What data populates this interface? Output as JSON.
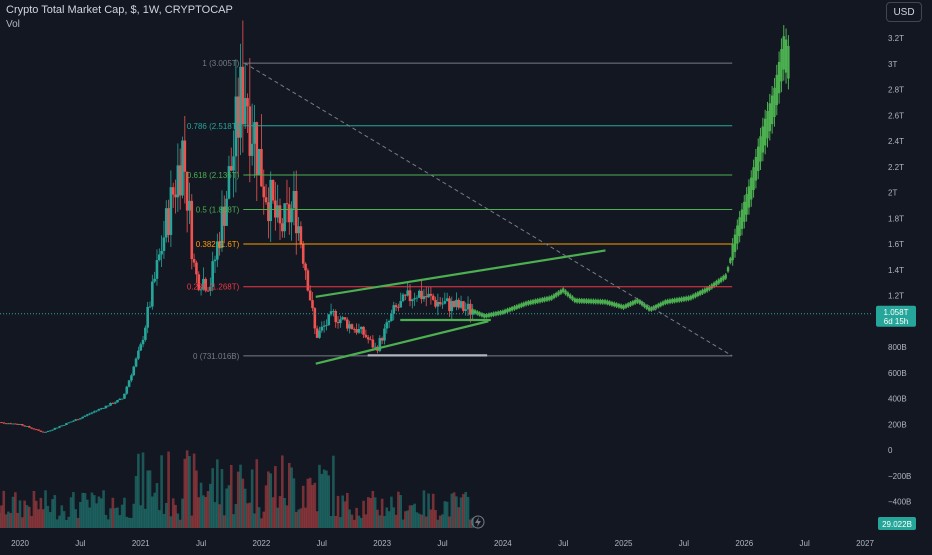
{
  "header": {
    "title": "Crypto Total Market Cap, $, 1W, CRYPTOCAP",
    "vol_label": "Vol"
  },
  "currency_button": "USD",
  "price_label": {
    "value": "1.058T",
    "countdown": "6d 15h"
  },
  "volume_label": "29.022B",
  "colors": {
    "background": "#131722",
    "up": "#26a69a",
    "down": "#ef5350",
    "projection": "#4caf50",
    "fib_levels": [
      "#787b86",
      "#26a69a",
      "#4caf50",
      "#4caf50",
      "#ff9800",
      "#f23645",
      "#787b86"
    ]
  },
  "chart_data": {
    "type": "candlestick",
    "symbol": "CRYPTOCAP:TOTAL",
    "interval": "1W",
    "price_axis_labels": [
      "3.2T",
      "3T",
      "2.8T",
      "2.6T",
      "2.4T",
      "2.2T",
      "2T",
      "1.8T",
      "1.6T",
      "1.4T",
      "1.2T",
      "1T",
      "800B",
      "600B",
      "400B",
      "200B",
      "0",
      "−200B",
      "−400B"
    ],
    "price_axis_values": [
      3200,
      3000,
      2800,
      2600,
      2400,
      2200,
      2000,
      1800,
      1600,
      1400,
      1200,
      1000,
      800,
      600,
      400,
      200,
      0,
      -200,
      -400
    ],
    "time_axis_labels": [
      "2020",
      "Jul",
      "2021",
      "Jul",
      "2022",
      "Jul",
      "2023",
      "Jul",
      "2024",
      "Jul",
      "2025",
      "Jul",
      "2026",
      "Jul",
      "2027"
    ],
    "time_axis_values": [
      2020.0,
      2020.5,
      2021.0,
      2021.5,
      2022.0,
      2022.5,
      2023.0,
      2023.5,
      2024.0,
      2024.5,
      2025.0,
      2025.5,
      2026.0,
      2026.5,
      2027.0
    ],
    "fib_retracement": [
      {
        "label": "1 (3.005T)",
        "value": 3005
      },
      {
        "label": "0.786 (2.518T)",
        "value": 2518
      },
      {
        "label": "0.618 (2.136T)",
        "value": 2136
      },
      {
        "label": "0.5 (1.868T)",
        "value": 1868
      },
      {
        "label": "0.382 (1.6T)",
        "value": 1600
      },
      {
        "label": "0.236 (1.268T)",
        "value": 1268
      },
      {
        "label": "0 (731.016B)",
        "value": 731
      }
    ],
    "fib_range": {
      "x_start": 2021.85,
      "x_end": 2025.9
    },
    "current_price": 1058,
    "historical_ohlc_anchors": [
      [
        2019.75,
        220
      ],
      [
        2020.0,
        200
      ],
      [
        2020.2,
        135
      ],
      [
        2020.5,
        250
      ],
      [
        2020.85,
        400
      ],
      [
        2021.0,
        800
      ],
      [
        2021.2,
        1700
      ],
      [
        2021.35,
        2350
      ],
      [
        2021.45,
        1350
      ],
      [
        2021.58,
        1300
      ],
      [
        2021.75,
        2200
      ],
      [
        2021.86,
        2900
      ],
      [
        2022.0,
        2150
      ],
      [
        2022.15,
        1700
      ],
      [
        2022.28,
        1900
      ],
      [
        2022.38,
        1350
      ],
      [
        2022.45,
        880
      ],
      [
        2022.6,
        1050
      ],
      [
        2022.85,
        900
      ],
      [
        2022.95,
        780
      ],
      [
        2023.1,
        1080
      ],
      [
        2023.28,
        1230
      ],
      [
        2023.45,
        1150
      ],
      [
        2023.6,
        1120
      ],
      [
        2023.75,
        1080
      ]
    ],
    "projection_path": [
      [
        2023.75,
        1080
      ],
      [
        2023.85,
        1040
      ],
      [
        2024.0,
        1070
      ],
      [
        2024.2,
        1140
      ],
      [
        2024.4,
        1180
      ],
      [
        2024.5,
        1240
      ],
      [
        2024.6,
        1160
      ],
      [
        2024.85,
        1150
      ],
      [
        2025.0,
        1110
      ],
      [
        2025.12,
        1160
      ],
      [
        2025.22,
        1090
      ],
      [
        2025.35,
        1150
      ],
      [
        2025.55,
        1180
      ],
      [
        2025.7,
        1250
      ],
      [
        2025.85,
        1350
      ],
      [
        2025.95,
        1700
      ],
      [
        2026.05,
        2000
      ],
      [
        2026.15,
        2400
      ],
      [
        2026.25,
        2700
      ],
      [
        2026.33,
        3100
      ],
      [
        2026.37,
        3000
      ]
    ],
    "trendlines": [
      {
        "from": [
          2022.45,
          1190
        ],
        "to": [
          2024.85,
          1550
        ],
        "color": "#4caf50"
      },
      {
        "from": [
          2022.45,
          670
        ],
        "to": [
          2023.88,
          1000
        ],
        "color": "#4caf50"
      },
      {
        "from": [
          2023.15,
          1010
        ],
        "to": [
          2023.9,
          1010
        ],
        "color": "#4caf50"
      },
      {
        "from": [
          2022.88,
          735
        ],
        "to": [
          2023.87,
          735
        ],
        "color": "#b2b5be"
      },
      {
        "from": [
          2021.86,
          3005
        ],
        "to": [
          2025.9,
          731
        ],
        "color": "#787b86",
        "dashed": true
      }
    ]
  }
}
